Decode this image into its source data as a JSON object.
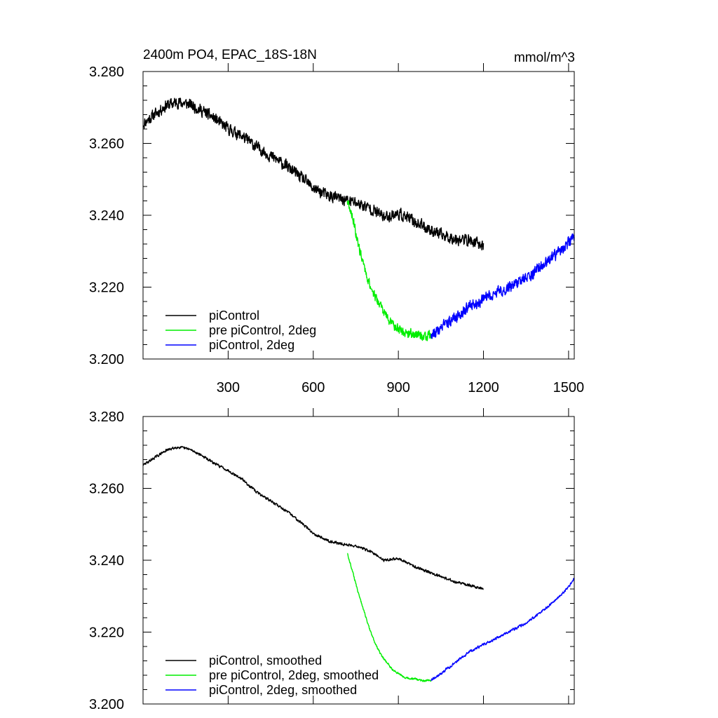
{
  "chart_data": [
    {
      "type": "line",
      "title_left": "2400m PO4, EPAC_18S-18N",
      "title_right": "mmol/m^3",
      "xlabel": "",
      "ylabel": "",
      "xlim": [
        0,
        1520
      ],
      "ylim": [
        3.2,
        3.28
      ],
      "xticks": [
        300,
        600,
        900,
        1200,
        1500
      ],
      "xtick_labels": [
        "300",
        "600",
        "900",
        "1200",
        "1500"
      ],
      "yticks": [
        3.2,
        3.22,
        3.24,
        3.26,
        3.28
      ],
      "ytick_labels": [
        "3.200",
        "3.220",
        "3.240",
        "3.260",
        "3.280"
      ],
      "legend_position": "bottom-left",
      "series": [
        {
          "name": "piControl",
          "color": "#000000",
          "noise": 0.0022,
          "x": [
            1,
            40,
            80,
            120,
            160,
            200,
            250,
            300,
            350,
            400,
            450,
            500,
            550,
            600,
            650,
            700,
            750,
            800,
            850,
            900,
            950,
            1000,
            1050,
            1100,
            1150,
            1200
          ],
          "y": [
            3.2655,
            3.268,
            3.2705,
            3.2715,
            3.271,
            3.2695,
            3.267,
            3.264,
            3.262,
            3.259,
            3.2565,
            3.254,
            3.251,
            3.2475,
            3.2455,
            3.2445,
            3.2435,
            3.242,
            3.2395,
            3.2405,
            3.2385,
            3.2365,
            3.2345,
            3.2335,
            3.233,
            3.2315
          ]
        },
        {
          "name": "pre piControl, 2deg",
          "color": "#00ee00",
          "noise": 0.0018,
          "x": [
            720,
            740,
            760,
            780,
            800,
            820,
            840,
            860,
            880,
            900,
            920,
            940,
            960,
            980,
            1000,
            1015
          ],
          "y": [
            3.244,
            3.239,
            3.2315,
            3.2255,
            3.2205,
            3.217,
            3.2145,
            3.2115,
            3.2095,
            3.2085,
            3.2075,
            3.207,
            3.207,
            3.2065,
            3.206,
            3.2065
          ]
        },
        {
          "name": "piControl, 2deg",
          "color": "#0000ff",
          "noise": 0.0022,
          "x": [
            1015,
            1050,
            1100,
            1150,
            1200,
            1250,
            1300,
            1350,
            1400,
            1450,
            1500,
            1520
          ],
          "y": [
            3.2065,
            3.2085,
            3.2115,
            3.2145,
            3.2165,
            3.2185,
            3.2205,
            3.2225,
            3.2255,
            3.2285,
            3.2325,
            3.234
          ]
        }
      ]
    },
    {
      "type": "line",
      "xlabel": "",
      "ylabel": "",
      "xlim": [
        0,
        1520
      ],
      "ylim": [
        3.2,
        3.28
      ],
      "xticks": [
        300,
        600,
        900,
        1200,
        1500
      ],
      "yticks": [
        3.2,
        3.22,
        3.24,
        3.26,
        3.28
      ],
      "ytick_labels": [
        "3.200",
        "3.220",
        "3.240",
        "3.260",
        "3.280"
      ],
      "legend_position": "bottom-left",
      "series": [
        {
          "name": "piControl, smoothed",
          "color": "#000000",
          "noise": 0.0005,
          "x": [
            1,
            40,
            80,
            120,
            160,
            200,
            250,
            300,
            350,
            400,
            450,
            500,
            550,
            600,
            650,
            700,
            750,
            800,
            850,
            900,
            950,
            1000,
            1050,
            1100,
            1150,
            1200
          ],
          "y": [
            3.2665,
            3.2685,
            3.2705,
            3.2715,
            3.271,
            3.2695,
            3.267,
            3.265,
            3.2625,
            3.259,
            3.2565,
            3.254,
            3.251,
            3.2475,
            3.2455,
            3.2445,
            3.244,
            3.2425,
            3.24,
            3.2405,
            3.2385,
            3.237,
            3.2355,
            3.234,
            3.233,
            3.232
          ]
        },
        {
          "name": "pre piControl, 2deg, smoothed",
          "color": "#00ee00",
          "noise": 0.0004,
          "x": [
            720,
            740,
            760,
            780,
            800,
            820,
            840,
            860,
            880,
            900,
            920,
            940,
            960,
            980,
            1000,
            1015
          ],
          "y": [
            3.242,
            3.2365,
            3.2305,
            3.2255,
            3.2205,
            3.2165,
            3.2135,
            3.2115,
            3.2095,
            3.2085,
            3.2075,
            3.207,
            3.207,
            3.2065,
            3.2065,
            3.2065
          ]
        },
        {
          "name": "piControl, 2deg, smoothed",
          "color": "#0000ff",
          "noise": 0.0005,
          "x": [
            1015,
            1050,
            1100,
            1150,
            1200,
            1250,
            1300,
            1350,
            1400,
            1450,
            1500,
            1520
          ],
          "y": [
            3.2065,
            3.2085,
            3.2115,
            3.2145,
            3.2165,
            3.2185,
            3.2205,
            3.2225,
            3.2255,
            3.2285,
            3.2325,
            3.235
          ]
        }
      ]
    }
  ]
}
